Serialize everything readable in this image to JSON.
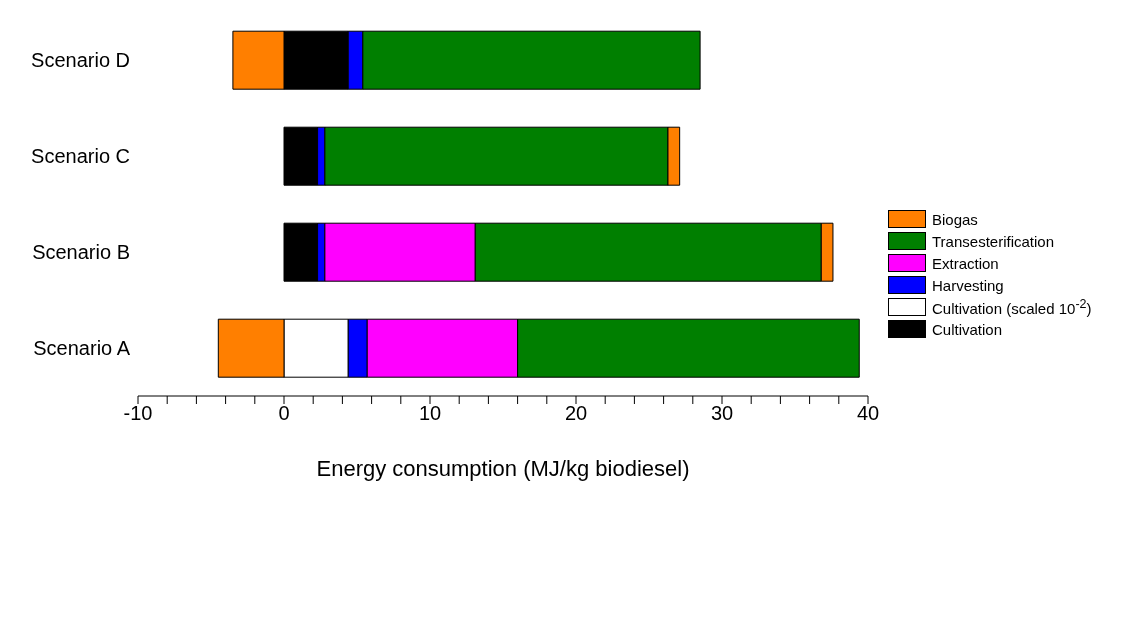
{
  "chart_data": {
    "type": "bar",
    "orientation": "horizontal",
    "stacked": true,
    "categories": [
      "Scenario D",
      "Scenario C",
      "Scenario B",
      "Scenario A"
    ],
    "series": [
      {
        "name": "Cultivation",
        "color": "#000000",
        "values": [
          4.4,
          2.3,
          2.3,
          null
        ]
      },
      {
        "name": "Cultivation (scaled 10$^{-2}$)",
        "color": "#ffffff",
        "values": [
          null,
          null,
          null,
          4.4
        ]
      },
      {
        "name": "Harvesting",
        "color": "#0000ff",
        "values": [
          1.0,
          0.5,
          0.5,
          1.3
        ]
      },
      {
        "name": "Extraction",
        "color": "#ff00ff",
        "values": [
          null,
          null,
          10.3,
          10.3
        ]
      },
      {
        "name": "Transesterification",
        "color": "#007f00",
        "values": [
          23.1,
          23.5,
          23.7,
          23.4
        ]
      },
      {
        "name": "Biogas",
        "color": "#ff7f00",
        "values": [
          -3.5,
          0.8,
          0.8,
          -4.5
        ]
      }
    ],
    "xlim": [
      -10,
      40
    ],
    "xticks": [
      -10,
      {
        "value": -8,
        "label": null
      },
      {
        "value": -6,
        "label": null
      },
      {
        "value": -4,
        "label": null
      },
      {
        "value": -2,
        "label": null
      },
      0,
      {
        "value": 2,
        "label": null
      },
      {
        "value": 4,
        "label": null
      },
      {
        "value": 6,
        "label": null
      },
      {
        "value": 8,
        "label": null
      },
      10,
      {
        "value": 12,
        "label": null
      },
      {
        "value": 14,
        "label": null
      },
      {
        "value": 16,
        "label": null
      },
      {
        "value": 18,
        "label": null
      },
      20,
      {
        "value": 22,
        "label": null
      },
      {
        "value": 24,
        "label": null
      },
      {
        "value": 26,
        "label": null
      },
      {
        "value": 28,
        "label": null
      },
      30,
      {
        "value": 32,
        "label": null
      },
      {
        "value": 34,
        "label": null
      },
      {
        "value": 36,
        "label": null
      },
      {
        "value": 38,
        "label": null
      },
      40
    ],
    "xlabel": "Energy consumption (MJ/kg biodiesel)",
    "legend": "right",
    "grid": false
  }
}
